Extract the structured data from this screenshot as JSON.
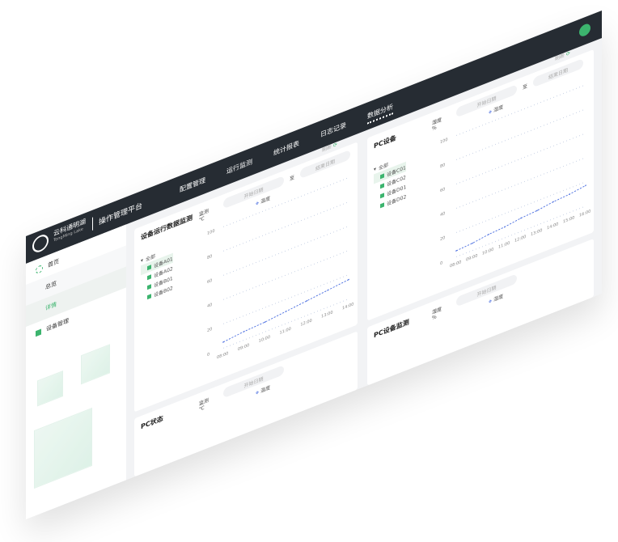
{
  "header": {
    "brand": "云科通明湖",
    "brand_sub": "TongMing Lake",
    "title": "操作管理平台",
    "nav": [
      "配置管理",
      "运行监测",
      "统计报表",
      "日志记录",
      "数据分析"
    ],
    "active_nav": 4,
    "avatar_color": "#3cb46e"
  },
  "sidebar": {
    "items": [
      {
        "label": "首页",
        "icon": "ring-icon"
      },
      {
        "label": "总览",
        "sub": true
      },
      {
        "label": "详情",
        "sub": true,
        "active": true
      },
      {
        "label": "设备管理",
        "icon": "square-icon"
      }
    ]
  },
  "cards": [
    {
      "title": "设备运行数据监测",
      "tree": {
        "root": "全部",
        "items": [
          "设备A01",
          "设备A02",
          "设备B01",
          "设备B02"
        ]
      },
      "metric_label": "监测",
      "metric_value": "℃",
      "date_placeholder": "开始日期",
      "to": "至",
      "end_placeholder": "结束日期",
      "legend": "温度",
      "refresh": "刷新"
    },
    {
      "title": "PC设备",
      "tree": {
        "root": "全部",
        "items": [
          "设备C01",
          "设备C02",
          "设备D01",
          "设备D02"
        ]
      },
      "metric_label": "湿度",
      "metric_value": "%",
      "date_placeholder": "开始日期",
      "to": "至",
      "end_placeholder": "结束日期",
      "legend": "湿度",
      "refresh": "刷新"
    },
    {
      "title": "PC状态",
      "metric_label": "监测",
      "metric_value": "℃",
      "date_placeholder": "开始日期",
      "legend": "温度"
    },
    {
      "title": "PC设备监测",
      "metric_label": "湿度",
      "metric_value": "%",
      "date_placeholder": "开始日期",
      "legend": "湿度"
    }
  ],
  "chart_data": [
    {
      "type": "line",
      "x": [
        "08:00",
        "09:00",
        "10:00",
        "11:00",
        "12:00",
        "13:00",
        "14:00"
      ],
      "y_ticks": [
        "100",
        "80",
        "60",
        "40",
        "20",
        "0"
      ],
      "series": [
        {
          "values": [
            5,
            7,
            8,
            10,
            12,
            14,
            16
          ]
        }
      ],
      "color": "#4a6ee0",
      "grid": true,
      "ylim": [
        0,
        100
      ]
    },
    {
      "type": "line",
      "x": [
        "08:00",
        "09:00",
        "10:00",
        "11:00",
        "12:00",
        "13:00",
        "14:00",
        "15:00",
        "16:00"
      ],
      "y_ticks": [
        "100",
        "80",
        "60",
        "40",
        "20",
        "0"
      ],
      "series": [
        {
          "values": [
            5,
            6,
            8,
            9,
            11,
            12,
            14,
            15,
            17
          ]
        }
      ],
      "color": "#4a6ee0",
      "grid": true,
      "ylim": [
        0,
        100
      ]
    }
  ]
}
